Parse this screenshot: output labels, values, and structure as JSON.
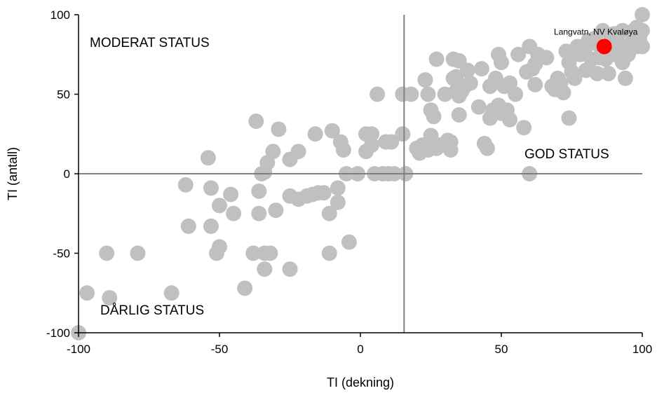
{
  "chart_data": {
    "type": "scatter",
    "xlabel": "TI (dekning)",
    "ylabel": "TI (antall)",
    "xlim": [
      -100,
      100
    ],
    "ylim": [
      -100,
      100
    ],
    "x_ticks": [
      -100,
      -50,
      0,
      50,
      100
    ],
    "y_ticks": [
      -100,
      -50,
      0,
      50,
      100
    ],
    "x_tick_labels": [
      "-100",
      "-50",
      "0",
      "50",
      "100"
    ],
    "y_tick_labels": [
      "-100",
      "-50",
      "0",
      "50",
      "100"
    ],
    "reference_lines": {
      "x": 15.5,
      "y": 0
    },
    "grid": false,
    "zone_labels": [
      "MODERAT STATUS",
      "GOD STATUS",
      "DÅRLIG STATUS"
    ],
    "colors": {
      "points": "#c0c0c0",
      "highlight": "#ff0000",
      "reference_lines": "#808080",
      "axes": "#000000"
    },
    "series": [
      {
        "points": [
          [
            -100,
            -100
          ],
          [
            -97,
            -75
          ],
          [
            -90,
            -50
          ],
          [
            -89,
            -78
          ],
          [
            -79,
            -50
          ],
          [
            -67,
            -75
          ],
          [
            -62,
            -7
          ],
          [
            -61,
            -33
          ],
          [
            -54,
            10
          ],
          [
            -53,
            -9
          ],
          [
            -53,
            -33
          ],
          [
            -50,
            -20
          ],
          [
            -50,
            -46
          ],
          [
            -51,
            -50
          ],
          [
            -46,
            -13
          ],
          [
            -45,
            -25
          ],
          [
            -41,
            -72
          ],
          [
            -38,
            -50
          ],
          [
            -37,
            33
          ],
          [
            -36,
            -11
          ],
          [
            -36,
            -25
          ],
          [
            -35,
            0
          ],
          [
            -34,
            1
          ],
          [
            -34,
            -50
          ],
          [
            -34,
            -60
          ],
          [
            -33,
            7
          ],
          [
            -32,
            -50
          ],
          [
            -31,
            14
          ],
          [
            -30,
            -23
          ],
          [
            -29,
            28
          ],
          [
            -25,
            9
          ],
          [
            -25,
            -14
          ],
          [
            -25,
            -60
          ],
          [
            -22,
            14
          ],
          [
            -22,
            -16
          ],
          [
            -19,
            -14
          ],
          [
            -17,
            -13
          ],
          [
            -16,
            25
          ],
          [
            -15,
            -12
          ],
          [
            -13,
            -12
          ],
          [
            -11,
            -50
          ],
          [
            -11,
            -25
          ],
          [
            -10,
            27
          ],
          [
            -8,
            -9
          ],
          [
            -8,
            -18
          ],
          [
            -7,
            20
          ],
          [
            -6,
            15
          ],
          [
            -5,
            0
          ],
          [
            -4,
            -43
          ],
          [
            -1,
            0
          ],
          [
            2,
            25
          ],
          [
            2,
            14
          ],
          [
            4,
            25
          ],
          [
            4,
            18
          ],
          [
            5,
            0
          ],
          [
            6,
            50
          ],
          [
            8,
            0
          ],
          [
            9,
            20
          ],
          [
            10,
            0
          ],
          [
            11,
            20
          ],
          [
            12,
            0
          ],
          [
            15,
            50
          ],
          [
            15,
            25
          ],
          [
            16,
            0
          ],
          [
            18,
            50
          ],
          [
            20,
            16
          ],
          [
            21,
            13
          ],
          [
            22,
            18
          ],
          [
            23,
            59
          ],
          [
            24,
            50
          ],
          [
            24,
            15
          ],
          [
            25,
            40
          ],
          [
            25,
            24
          ],
          [
            26,
            36
          ],
          [
            27,
            16
          ],
          [
            27,
            72
          ],
          [
            28,
            18
          ],
          [
            30,
            50
          ],
          [
            31,
            21
          ],
          [
            32,
            20
          ],
          [
            32,
            15
          ],
          [
            33,
            60
          ],
          [
            33,
            72
          ],
          [
            34,
            61
          ],
          [
            34,
            52
          ],
          [
            35,
            71
          ],
          [
            35,
            49
          ],
          [
            35,
            37
          ],
          [
            36,
            52
          ],
          [
            37,
            55
          ],
          [
            38,
            65
          ],
          [
            39,
            57
          ],
          [
            42,
            42
          ],
          [
            43,
            66
          ],
          [
            44,
            19
          ],
          [
            45,
            16
          ],
          [
            46,
            55
          ],
          [
            46,
            35
          ],
          [
            47,
            40
          ],
          [
            48,
            60
          ],
          [
            49,
            75
          ],
          [
            49,
            43
          ],
          [
            50,
            70
          ],
          [
            50,
            38
          ],
          [
            51,
            55
          ],
          [
            52,
            40
          ],
          [
            53,
            57
          ],
          [
            53,
            34
          ],
          [
            55,
            50
          ],
          [
            56,
            75
          ],
          [
            58,
            29
          ],
          [
            59,
            64
          ],
          [
            60,
            80
          ],
          [
            60,
            0
          ],
          [
            61,
            66
          ],
          [
            62,
            69
          ],
          [
            62,
            56
          ],
          [
            63,
            75
          ],
          [
            66,
            73
          ],
          [
            68,
            55
          ],
          [
            69,
            53
          ],
          [
            70,
            60
          ],
          [
            71,
            57
          ],
          [
            72,
            51
          ],
          [
            73,
            77
          ],
          [
            74,
            35
          ],
          [
            74,
            70
          ],
          [
            75,
            64
          ],
          [
            76,
            60
          ],
          [
            77,
            80
          ],
          [
            78,
            75
          ],
          [
            80,
            65
          ],
          [
            80,
            80
          ],
          [
            81,
            84
          ],
          [
            82,
            72
          ],
          [
            83,
            85
          ],
          [
            84,
            63
          ],
          [
            85,
            73
          ],
          [
            85,
            80
          ],
          [
            86,
            90
          ],
          [
            87,
            72
          ],
          [
            88,
            63
          ],
          [
            89,
            87
          ],
          [
            90,
            75
          ],
          [
            90,
            88
          ],
          [
            91,
            85
          ],
          [
            92,
            80
          ],
          [
            93,
            90
          ],
          [
            93,
            70
          ],
          [
            94,
            60
          ],
          [
            95,
            75
          ],
          [
            96,
            82
          ],
          [
            97,
            85
          ],
          [
            97,
            90
          ],
          [
            98,
            80
          ],
          [
            98,
            92
          ],
          [
            99,
            85
          ],
          [
            100,
            100
          ],
          [
            100,
            90
          ],
          [
            100,
            80
          ]
        ]
      },
      {
        "name": "Langvatn, NV Kvaløya",
        "highlight": true,
        "points": [
          [
            86.5,
            80
          ]
        ]
      }
    ]
  }
}
